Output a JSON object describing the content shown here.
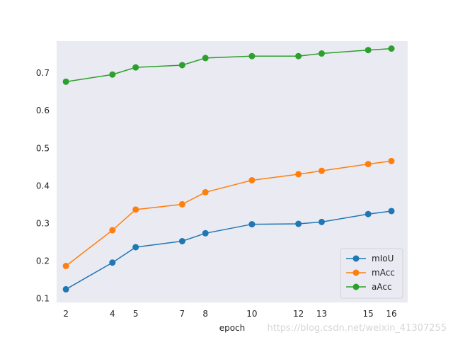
{
  "chart_data": {
    "type": "line",
    "title": "",
    "xlabel": "epoch",
    "ylabel": "",
    "x": [
      2,
      4,
      5,
      7,
      8,
      10,
      12,
      13,
      15,
      16
    ],
    "xticks": [
      "2",
      "4",
      "5",
      "7",
      "8",
      "10",
      "12",
      "13",
      "15",
      "16"
    ],
    "xlim": [
      1.6,
      16.7
    ],
    "yticks": [
      "0.1",
      "0.2",
      "0.3",
      "0.4",
      "0.5",
      "0.6",
      "0.7"
    ],
    "ylim": [
      0.09,
      0.785
    ],
    "grid": false,
    "background": "#eaeaf2",
    "legend_position": "lower-right",
    "series": [
      {
        "name": "mIoU",
        "color": "#1f77b4",
        "values": [
          0.125,
          0.196,
          0.237,
          0.253,
          0.274,
          0.298,
          0.299,
          0.304,
          0.325,
          0.333
        ]
      },
      {
        "name": "mAcc",
        "color": "#ff7f0e",
        "values": [
          0.187,
          0.282,
          0.337,
          0.351,
          0.383,
          0.415,
          0.431,
          0.44,
          0.458,
          0.466
        ]
      },
      {
        "name": "aAcc",
        "color": "#2ca02c",
        "values": [
          0.677,
          0.696,
          0.715,
          0.721,
          0.74,
          0.745,
          0.745,
          0.752,
          0.761,
          0.765
        ]
      }
    ]
  },
  "watermark": "https://blog.csdn.net/weixin_41307255"
}
